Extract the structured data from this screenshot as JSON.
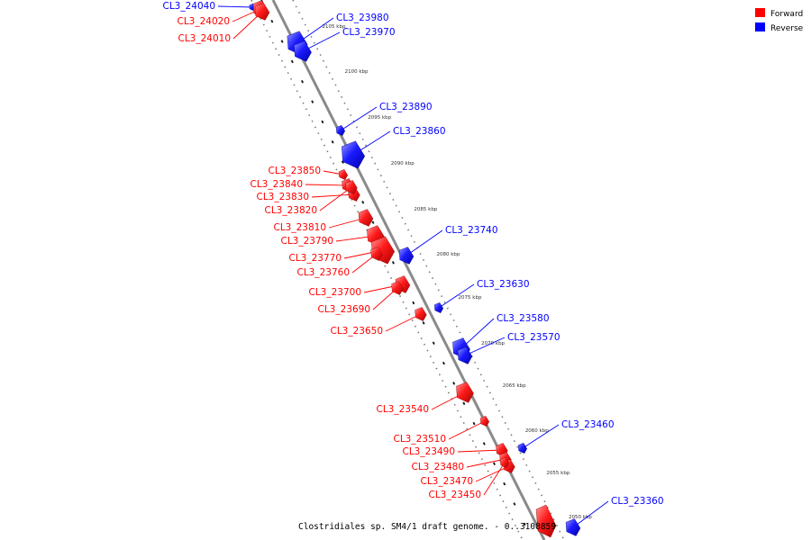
{
  "caption": "Clostridiales sp. SM4/1 draft genome. - 0..3108859",
  "legend": [
    {
      "label": "Forward",
      "color": "#ff0000"
    },
    {
      "label": "Reverse",
      "color": "#0000ff"
    }
  ],
  "ticks": [
    {
      "label": "2105 kbp",
      "kbp": 2105
    },
    {
      "label": "2100 kbp",
      "kbp": 2100
    },
    {
      "label": "2095 kbp",
      "kbp": 2095
    },
    {
      "label": "2090 kbp",
      "kbp": 2090
    },
    {
      "label": "2085 kbp",
      "kbp": 2085
    },
    {
      "label": "2080 kbp",
      "kbp": 2080
    },
    {
      "label": "2075 kbp",
      "kbp": 2075
    },
    {
      "label": "2070 kbp",
      "kbp": 2070
    },
    {
      "label": "2065 kbp",
      "kbp": 2065
    },
    {
      "label": "2060 kbp",
      "kbp": 2060
    },
    {
      "label": "2055 kbp",
      "kbp": 2055
    },
    {
      "label": "2050 kbp",
      "kbp": 2050
    }
  ],
  "genes": [
    {
      "id": "CL3_24040",
      "strand": "reverse"
    },
    {
      "id": "CL3_24020",
      "strand": "forward"
    },
    {
      "id": "CL3_24010",
      "strand": "forward"
    },
    {
      "id": "CL3_23980",
      "strand": "reverse"
    },
    {
      "id": "CL3_23970",
      "strand": "reverse"
    },
    {
      "id": "CL3_23890",
      "strand": "reverse"
    },
    {
      "id": "CL3_23860",
      "strand": "reverse"
    },
    {
      "id": "CL3_23850",
      "strand": "forward"
    },
    {
      "id": "CL3_23840",
      "strand": "forward"
    },
    {
      "id": "CL3_23830",
      "strand": "forward"
    },
    {
      "id": "CL3_23820",
      "strand": "forward"
    },
    {
      "id": "CL3_23810",
      "strand": "forward"
    },
    {
      "id": "CL3_23790",
      "strand": "forward"
    },
    {
      "id": "CL3_23770",
      "strand": "forward"
    },
    {
      "id": "CL3_23760",
      "strand": "forward"
    },
    {
      "id": "CL3_23740",
      "strand": "reverse"
    },
    {
      "id": "CL3_23700",
      "strand": "forward"
    },
    {
      "id": "CL3_23690",
      "strand": "forward"
    },
    {
      "id": "CL3_23630",
      "strand": "reverse"
    },
    {
      "id": "CL3_23650",
      "strand": "forward"
    },
    {
      "id": "CL3_23580",
      "strand": "reverse"
    },
    {
      "id": "CL3_23570",
      "strand": "reverse"
    },
    {
      "id": "CL3_23540",
      "strand": "forward"
    },
    {
      "id": "CL3_23460",
      "strand": "reverse"
    },
    {
      "id": "CL3_23510",
      "strand": "forward"
    },
    {
      "id": "CL3_23490",
      "strand": "forward"
    },
    {
      "id": "CL3_23480",
      "strand": "forward"
    },
    {
      "id": "CL3_23470",
      "strand": "forward"
    },
    {
      "id": "CL3_23450",
      "strand": "forward"
    },
    {
      "id": "CL3_23360",
      "strand": "reverse"
    }
  ]
}
